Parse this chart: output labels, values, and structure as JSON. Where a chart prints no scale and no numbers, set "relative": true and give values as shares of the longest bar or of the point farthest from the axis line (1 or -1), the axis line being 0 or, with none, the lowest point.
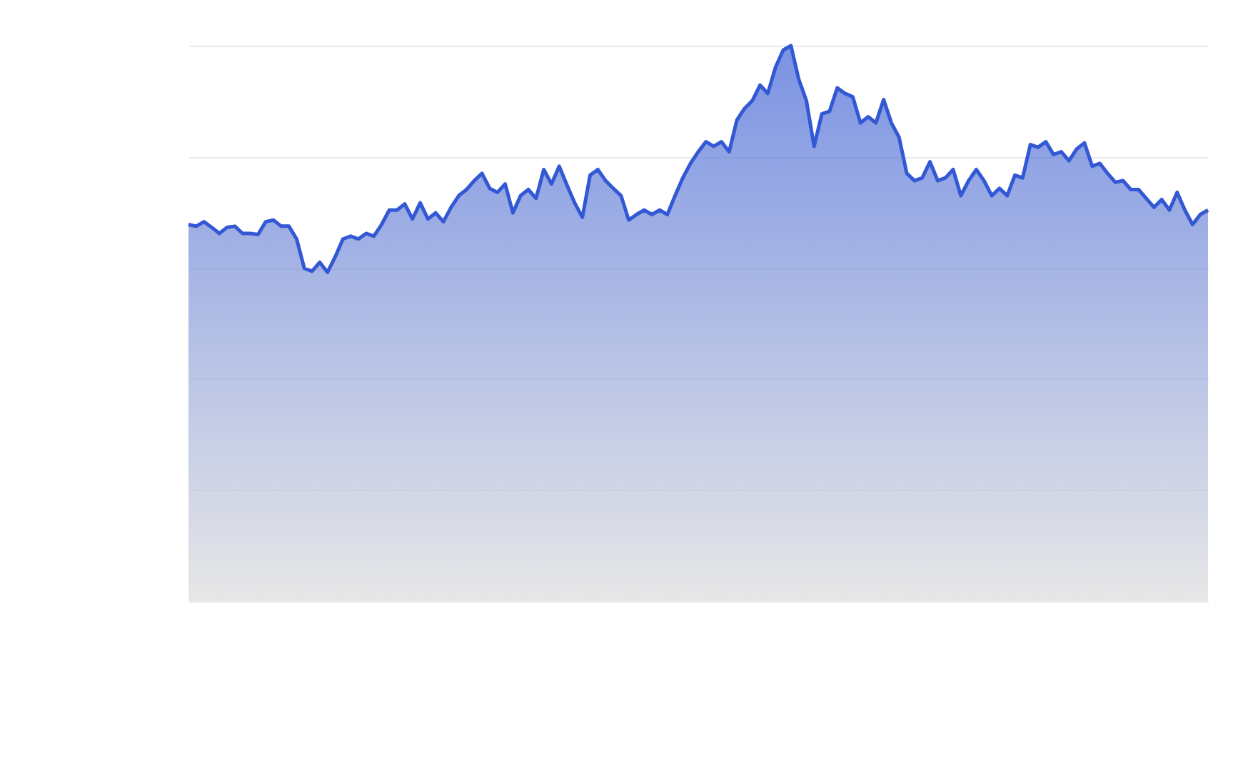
{
  "chart_data": [
    {
      "type": "area",
      "relative": true,
      "grid": "y",
      "tick_labels": false,
      "categories": [
        null,
        null,
        null,
        null,
        null,
        null,
        null,
        null,
        null,
        null,
        null,
        null,
        null,
        null,
        null,
        null,
        null,
        null,
        null,
        null,
        null,
        null,
        null,
        null,
        null,
        null,
        null,
        null,
        null,
        null,
        null,
        null,
        null,
        null,
        null,
        null,
        null,
        null,
        null,
        null,
        null,
        null,
        null,
        null,
        null,
        null,
        null,
        null,
        null,
        null,
        null,
        null,
        null,
        null,
        null,
        null,
        null,
        null,
        null,
        null,
        null,
        null,
        null,
        null,
        null,
        null,
        null,
        null,
        null,
        null,
        null,
        null,
        null,
        null,
        null,
        null,
        null,
        null,
        null,
        null,
        null,
        null,
        null,
        null,
        null,
        null,
        null,
        null,
        null,
        null,
        null,
        null,
        null,
        null,
        null,
        null,
        null,
        null,
        null,
        null,
        null,
        null,
        null,
        null,
        null,
        null,
        null,
        null,
        null,
        null,
        null,
        null,
        null,
        null,
        null,
        null,
        null,
        null,
        null,
        null,
        null,
        null,
        null,
        null,
        null,
        null,
        null,
        null,
        null,
        null,
        null,
        null,
        null
      ],
      "series": [
        {
          "color": "#3358d4",
          "values": [
            0.678,
            0.675,
            0.683,
            0.673,
            0.662,
            0.673,
            0.675,
            0.662,
            0.662,
            0.66,
            0.683,
            0.686,
            0.675,
            0.675,
            0.652,
            0.599,
            0.594,
            0.61,
            0.592,
            0.62,
            0.652,
            0.657,
            0.652,
            0.662,
            0.657,
            0.678,
            0.704,
            0.704,
            0.715,
            0.688,
            0.717,
            0.688,
            0.699,
            0.683,
            0.709,
            0.73,
            0.741,
            0.757,
            0.77,
            0.743,
            0.736,
            0.751,
            0.699,
            0.73,
            0.741,
            0.725,
            0.777,
            0.751,
            0.783,
            0.749,
            0.717,
            0.691,
            0.767,
            0.777,
            0.757,
            0.743,
            0.73,
            0.686,
            0.696,
            0.704,
            0.696,
            0.704,
            0.696,
            0.73,
            0.762,
            0.788,
            0.809,
            0.827,
            0.819,
            0.827,
            0.809,
            0.866,
            0.887,
            0.901,
            0.929,
            0.914,
            0.961,
            0.992,
            1.0,
            0.94,
            0.901,
            0.819,
            0.877,
            0.882,
            0.924,
            0.914,
            0.908,
            0.861,
            0.872,
            0.861,
            0.903,
            0.861,
            0.835,
            0.77,
            0.757,
            0.762,
            0.791,
            0.757,
            0.762,
            0.777,
            0.73,
            0.757,
            0.777,
            0.757,
            0.73,
            0.743,
            0.73,
            0.767,
            0.762,
            0.822,
            0.817,
            0.827,
            0.804,
            0.809,
            0.793,
            0.814,
            0.825,
            0.783,
            0.788,
            0.77,
            0.754,
            0.757,
            0.741,
            0.741,
            0.725,
            0.709,
            0.723,
            0.704,
            0.736,
            0.704,
            0.678,
            0.696,
            0.704
          ]
        }
      ]
    }
  ]
}
